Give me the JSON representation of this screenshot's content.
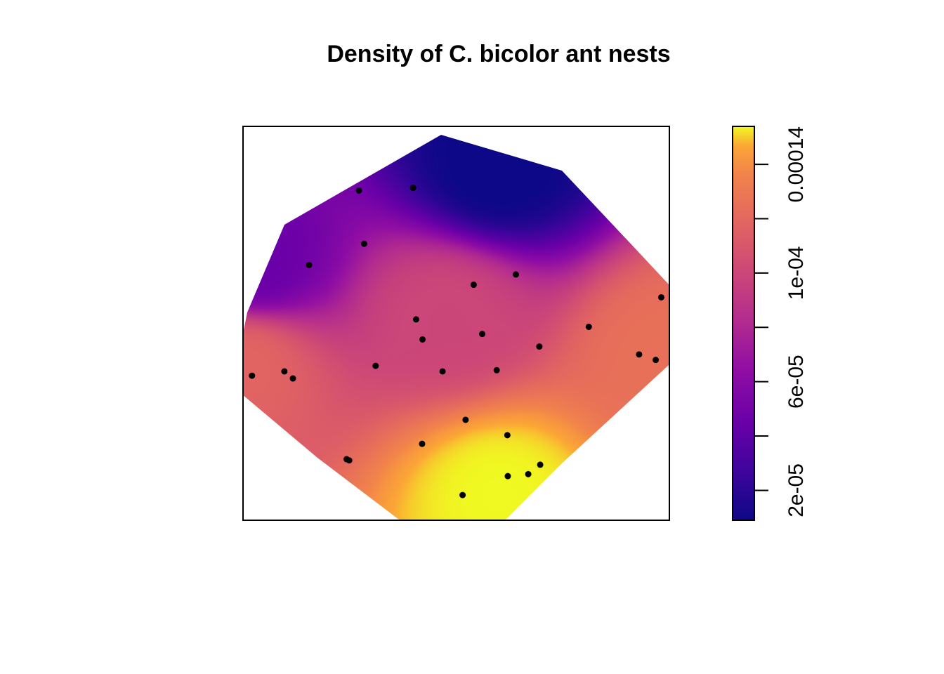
{
  "chart_data": {
    "type": "heatmap",
    "title": "Density of C. bicolor ant nests",
    "xlabel": "",
    "ylabel": "",
    "colormap": "plasma",
    "colorbar": {
      "min": 9e-06,
      "max": 0.000154,
      "ticks": [
        {
          "value": 2e-05,
          "label": "2e-05"
        },
        {
          "value": 4e-05,
          "label": ""
        },
        {
          "value": 6e-05,
          "label": "6e-05"
        },
        {
          "value": 8e-05,
          "label": ""
        },
        {
          "value": 0.0001,
          "label": "1e-04"
        },
        {
          "value": 0.00012,
          "label": ""
        },
        {
          "value": 0.00014,
          "label": "0.00014"
        }
      ],
      "position": "right"
    },
    "density_peaks": [
      {
        "x": 0.6,
        "y": 0.93,
        "value": 0.000154
      },
      {
        "x": 1.0,
        "y": 0.58,
        "value": 0.000125
      },
      {
        "x": 0.0,
        "y": 0.6,
        "value": 0.000118
      },
      {
        "x": 0.48,
        "y": 0.48,
        "value": 0.0001
      },
      {
        "x": 0.6,
        "y": 0.1,
        "value": 8e-06
      },
      {
        "x": 0.02,
        "y": 0.35,
        "value": 4.5e-05
      }
    ],
    "points": [
      {
        "x": 0.272,
        "y": 0.163
      },
      {
        "x": 0.399,
        "y": 0.156
      },
      {
        "x": 0.284,
        "y": 0.298
      },
      {
        "x": 0.155,
        "y": 0.352
      },
      {
        "x": 0.541,
        "y": 0.402
      },
      {
        "x": 0.64,
        "y": 0.376
      },
      {
        "x": 0.981,
        "y": 0.434
      },
      {
        "x": 0.406,
        "y": 0.49
      },
      {
        "x": 0.561,
        "y": 0.527
      },
      {
        "x": 0.421,
        "y": 0.541
      },
      {
        "x": 0.811,
        "y": 0.509
      },
      {
        "x": 0.695,
        "y": 0.559
      },
      {
        "x": 0.929,
        "y": 0.579
      },
      {
        "x": 0.968,
        "y": 0.593
      },
      {
        "x": 0.021,
        "y": 0.633
      },
      {
        "x": 0.097,
        "y": 0.622
      },
      {
        "x": 0.117,
        "y": 0.64
      },
      {
        "x": 0.311,
        "y": 0.608
      },
      {
        "x": 0.468,
        "y": 0.622
      },
      {
        "x": 0.595,
        "y": 0.619
      },
      {
        "x": 0.522,
        "y": 0.745
      },
      {
        "x": 0.62,
        "y": 0.784
      },
      {
        "x": 0.42,
        "y": 0.806
      },
      {
        "x": 0.243,
        "y": 0.845
      },
      {
        "x": 0.249,
        "y": 0.848
      },
      {
        "x": 0.621,
        "y": 0.888
      },
      {
        "x": 0.669,
        "y": 0.883
      },
      {
        "x": 0.697,
        "y": 0.859
      },
      {
        "x": 0.515,
        "y": 0.936
      }
    ]
  }
}
